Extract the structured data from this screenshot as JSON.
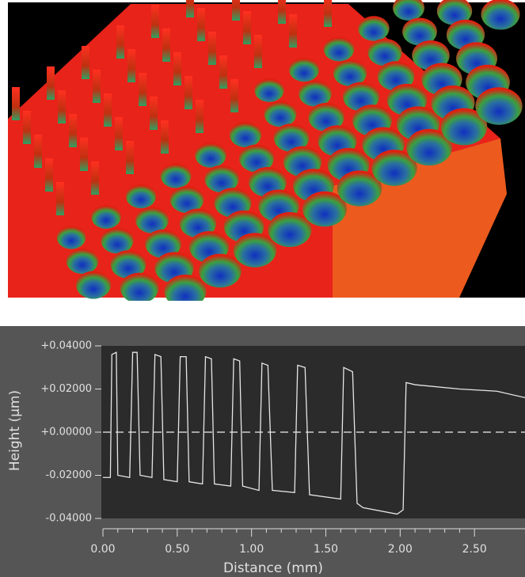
{
  "chart_data": {
    "type": "line",
    "x_label": "Distance (mm)",
    "y_label": "Height (µm)",
    "xlim": [
      0,
      2.84
    ],
    "ylim": [
      -0.04,
      0.04
    ],
    "xticks": [
      {
        "value": 0,
        "label": "0.00"
      },
      {
        "value": 0.5,
        "label": "0.50"
      },
      {
        "value": 1,
        "label": "1.00"
      },
      {
        "value": 1.5,
        "label": "1.50"
      },
      {
        "value": 2,
        "label": "2.00"
      },
      {
        "value": 2.5,
        "label": "2.50"
      }
    ],
    "yticks": [
      {
        "value": 0.04,
        "label": "+0.04000"
      },
      {
        "value": 0.02,
        "label": "+0.02000"
      },
      {
        "value": 0,
        "label": "+0.00000"
      },
      {
        "value": -0.02,
        "label": "-0.02000"
      },
      {
        "value": -0.04,
        "label": "-0.04000"
      }
    ],
    "reference_line": 0,
    "series": [
      {
        "color": "#e6e6e6",
        "x": [
          0,
          0.05,
          0.06,
          0.09,
          0.1,
          0.18,
          0.2,
          0.23,
          0.25,
          0.33,
          0.35,
          0.39,
          0.41,
          0.5,
          0.52,
          0.56,
          0.58,
          0.67,
          0.69,
          0.73,
          0.75,
          0.86,
          0.88,
          0.92,
          0.94,
          1.05,
          1.07,
          1.11,
          1.14,
          1.29,
          1.31,
          1.36,
          1.39,
          1.6,
          1.62,
          1.68,
          1.71,
          1.75,
          1.98,
          2.02,
          2.04,
          2.1,
          2.4,
          2.65,
          2.84
        ],
        "values": [
          -0.021,
          -0.021,
          0.036,
          0.037,
          -0.02,
          -0.021,
          0.037,
          0.037,
          -0.02,
          -0.021,
          0.036,
          0.035,
          -0.022,
          -0.023,
          0.035,
          0.035,
          -0.023,
          -0.024,
          0.035,
          0.034,
          -0.024,
          -0.025,
          0.034,
          0.033,
          -0.025,
          -0.027,
          0.032,
          0.031,
          -0.027,
          -0.028,
          0.031,
          0.03,
          -0.029,
          -0.031,
          0.03,
          0.028,
          -0.033,
          -0.035,
          -0.038,
          -0.036,
          0.023,
          0.022,
          0.02,
          0.019,
          0.016
        ]
      }
    ]
  }
}
